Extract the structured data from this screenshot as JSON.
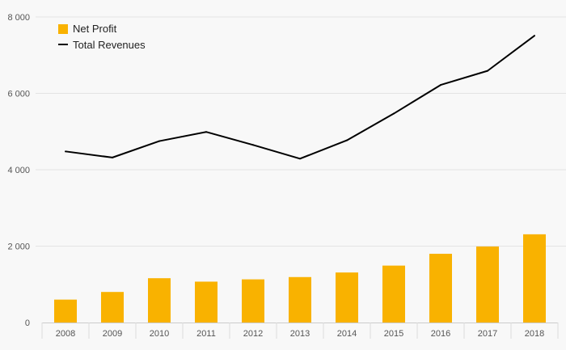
{
  "chart_data": {
    "type": "bar",
    "categories": [
      "2008",
      "2009",
      "2010",
      "2011",
      "2012",
      "2013",
      "2014",
      "2015",
      "2016",
      "2017",
      "2018"
    ],
    "series": [
      {
        "name": "Net Profit",
        "type": "bar",
        "color": "#f9b200",
        "values": [
          600,
          800,
          1160,
          1070,
          1130,
          1190,
          1310,
          1490,
          1800,
          1990,
          2310
        ]
      },
      {
        "name": "Total Revenues",
        "type": "line",
        "color": "#000000",
        "values": [
          4480,
          4320,
          4750,
          4990,
          4650,
          4290,
          4770,
          5470,
          6220,
          6590,
          7510
        ]
      }
    ],
    "ylim": [
      0,
      8000
    ],
    "yticks": [
      0,
      2000,
      4000,
      6000,
      8000
    ],
    "ytick_labels": [
      "0",
      "2 000",
      "4 000",
      "6 000",
      "8 000"
    ],
    "grid": true,
    "legend_position": "top-left",
    "title": "",
    "xlabel": "",
    "ylabel": ""
  }
}
